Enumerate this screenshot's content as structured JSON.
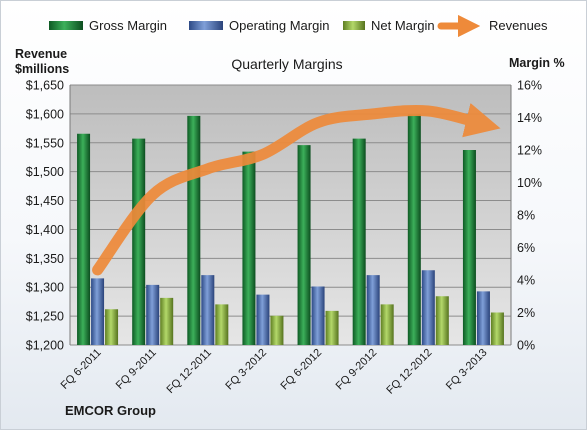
{
  "chart_data": {
    "type": "bar",
    "title": "Quarterly Margins",
    "categories": [
      "FQ 6-2011",
      "FQ 9-2011",
      "FQ 12-2011",
      "FQ 3-2012",
      "FQ 6-2012",
      "FQ 9-2012",
      "FQ 12-2012",
      "FQ 3-2013"
    ],
    "left_axis": {
      "label_line1": "Revenue",
      "label_line2": "$millions",
      "ylim": [
        1200,
        1650
      ],
      "ticks": [
        "$1,200",
        "$1,250",
        "$1,300",
        "$1,350",
        "$1,400",
        "$1,450",
        "$1,500",
        "$1,550",
        "$1,600",
        "$1,650"
      ]
    },
    "right_axis": {
      "label": "Margin %",
      "ylim": [
        0,
        16
      ],
      "ticks": [
        "0%",
        "2%",
        "4%",
        "6%",
        "8%",
        "10%",
        "12%",
        "14%",
        "16%"
      ]
    },
    "series": [
      {
        "name": "Gross Margin",
        "axis": "right",
        "type": "bar",
        "color": "#1e8b3c",
        "values": [
          13.0,
          12.7,
          14.1,
          11.9,
          12.3,
          12.7,
          14.2,
          12.0
        ]
      },
      {
        "name": "Operating Margin",
        "axis": "right",
        "type": "bar",
        "color": "#4a6fb5",
        "values": [
          4.1,
          3.7,
          4.3,
          3.1,
          3.6,
          4.3,
          4.6,
          3.3
        ]
      },
      {
        "name": "Net Margin",
        "axis": "right",
        "type": "bar",
        "color": "#8db73c",
        "values": [
          2.2,
          2.9,
          2.5,
          1.8,
          2.1,
          2.5,
          3.0,
          2.0
        ]
      },
      {
        "name": "Revenues",
        "axis": "left",
        "type": "line",
        "color": "#ee8a3a",
        "values": [
          1330,
          1460,
          1505,
          1530,
          1585,
          1600,
          1605,
          1582
        ]
      }
    ],
    "grid": true,
    "legend_position": "top",
    "footer": "EMCOR Group"
  }
}
